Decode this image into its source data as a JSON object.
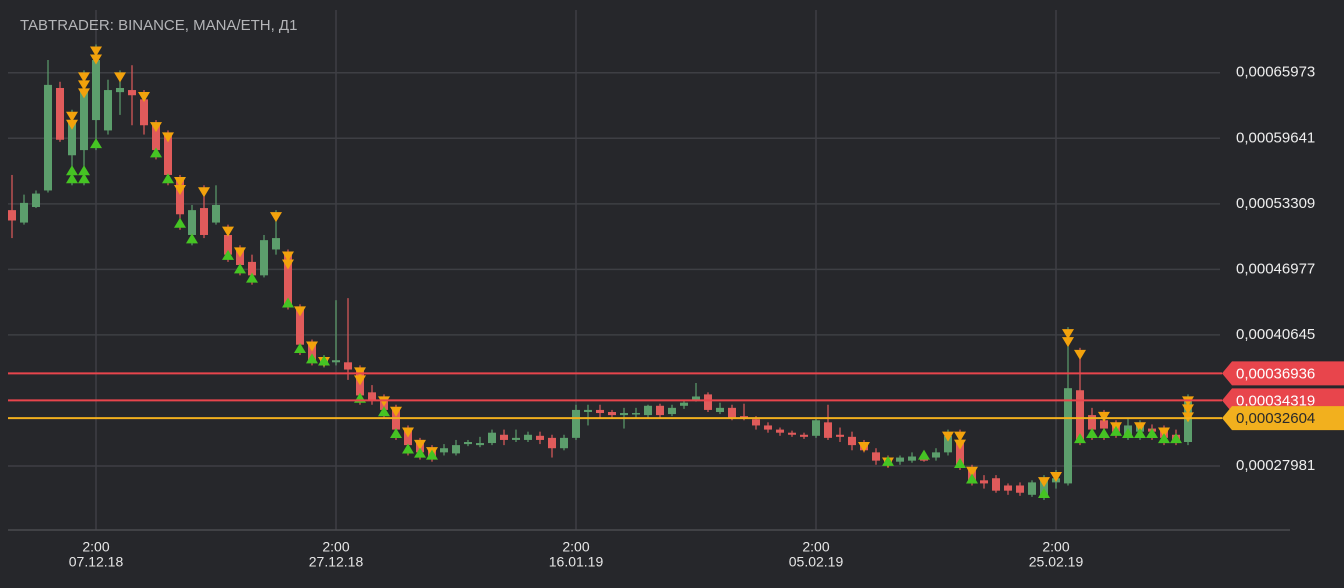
{
  "chart_data": {
    "type": "candlestick",
    "title": "TABTRADER: BINANCE, MANA/ETH, Д1",
    "x": [
      "30.11.18",
      "01.12.18",
      "02.12.18",
      "03.12.18",
      "04.12.18",
      "05.12.18",
      "06.12.18",
      "07.12.18",
      "08.12.18",
      "09.12.18",
      "10.12.18",
      "11.12.18",
      "12.12.18",
      "13.12.18",
      "14.12.18",
      "15.12.18",
      "16.12.18",
      "17.12.18",
      "18.12.18",
      "19.12.18",
      "20.12.18",
      "21.12.18",
      "22.12.18",
      "23.12.18",
      "24.12.18",
      "25.12.18",
      "26.12.18",
      "27.12.18",
      "28.12.18",
      "29.12.18",
      "30.12.18",
      "31.12.18",
      "01.01.19",
      "02.01.19",
      "03.01.19",
      "04.01.19",
      "05.01.19",
      "06.01.19",
      "07.01.19",
      "08.01.19",
      "09.01.19",
      "10.01.19",
      "11.01.19",
      "12.01.19",
      "13.01.19",
      "14.01.19",
      "15.01.19",
      "16.01.19",
      "17.01.19",
      "18.01.19",
      "19.01.19",
      "20.01.19",
      "21.01.19",
      "22.01.19",
      "23.01.19",
      "24.01.19",
      "25.01.19",
      "26.01.19",
      "27.01.19",
      "28.01.19",
      "29.01.19",
      "30.01.19",
      "31.01.19",
      "01.02.19",
      "02.02.19",
      "03.02.19",
      "04.02.19",
      "05.02.19",
      "06.02.19",
      "07.02.19",
      "08.02.19",
      "09.02.19",
      "10.02.19",
      "11.02.19",
      "12.02.19",
      "13.02.19",
      "14.02.19",
      "15.02.19",
      "16.02.19",
      "17.02.19",
      "18.02.19",
      "19.02.19",
      "20.02.19",
      "21.02.19",
      "22.02.19",
      "23.02.19",
      "24.02.19",
      "25.02.19",
      "26.02.19",
      "27.02.19",
      "28.02.19",
      "01.03.19",
      "02.03.19",
      "03.03.19",
      "04.03.19",
      "05.03.19",
      "06.03.19",
      "07.03.19",
      "08.03.19"
    ],
    "open": [
      0.000527,
      0.000515,
      0.00053,
      0.000546,
      0.000645,
      0.00058,
      0.000585,
      0.000614,
      0.000604,
      0.000641,
      0.000643,
      0.000634,
      0.000609,
      0.0006,
      0.000556,
      0.000503,
      0.000529,
      0.000515,
      0.000503,
      0.000489,
      0.000477,
      0.000464,
      0.000489,
      0.000487,
      0.000431,
      0.000397,
      0.00038,
      0.00038,
      0.00038,
      0.000373,
      0.000351,
      0.000344,
      0.000334,
      0.000315,
      0.000305,
      0.000295,
      0.000293,
      0.000292,
      0.000301,
      0.0003,
      0.000302,
      0.00031,
      0.000305,
      0.000305,
      0.000309,
      0.000307,
      0.000297,
      0.000307,
      0.000332,
      0.000334,
      0.000332,
      0.000329,
      0.00033,
      0.000329,
      0.000338,
      0.00033,
      0.000338,
      0.000344,
      0.000349,
      0.000332,
      0.000336,
      0.000328,
      0.000325,
      0.000319,
      0.000315,
      0.000312,
      0.00031,
      0.000309,
      0.000322,
      0.00031,
      0.000308,
      0.0003,
      0.000293,
      0.000285,
      0.000284,
      0.000285,
      0.000288,
      0.000288,
      0.000293,
      0.000305,
      0.000276,
      0.000266,
      0.000268,
      0.000261,
      0.000261,
      0.000252,
      0.000251,
      0.000264,
      0.000263,
      0.000353,
      0.000329,
      0.000324,
      0.000319,
      0.00031,
      0.000313,
      0.000316,
      0.000315,
      0.00031,
      0.000303
    ],
    "high": [
      0.000561,
      0.000542,
      0.000546,
      0.000672,
      0.000651,
      0.000624,
      0.000662,
      0.000687,
      0.000653,
      0.000662,
      0.000667,
      0.000643,
      0.000614,
      0.000604,
      0.000561,
      0.000532,
      0.000551,
      0.000551,
      0.000513,
      0.000493,
      0.000484,
      0.000503,
      0.000527,
      0.000489,
      0.000436,
      0.000402,
      0.000387,
      0.00044,
      0.000442,
      0.000377,
      0.000358,
      0.000349,
      0.000339,
      0.000319,
      0.000307,
      0.0003,
      0.000301,
      0.000305,
      0.000305,
      0.000308,
      0.000315,
      0.000315,
      0.000315,
      0.000313,
      0.000313,
      0.00031,
      0.00031,
      0.000339,
      0.000339,
      0.000339,
      0.000334,
      0.000336,
      0.000336,
      0.000339,
      0.00034,
      0.000339,
      0.000344,
      0.00036,
      0.000351,
      0.000341,
      0.000339,
      0.00034,
      0.000328,
      0.000322,
      0.000317,
      0.000314,
      0.000312,
      0.000326,
      0.000339,
      0.000317,
      0.000313,
      0.000305,
      0.000297,
      0.00029,
      0.00029,
      0.000293,
      0.000293,
      0.000297,
      0.000315,
      0.000315,
      0.000281,
      0.000271,
      0.000271,
      0.000263,
      0.000264,
      0.000266,
      0.000271,
      0.000276,
      0.000414,
      0.000394,
      0.000336,
      0.000334,
      0.000324,
      0.000326,
      0.000324,
      0.00032,
      0.000319,
      0.000315,
      0.000349
    ],
    "low": [
      0.0005,
      0.000513,
      0.000529,
      0.000544,
      0.000593,
      0.000551,
      0.000551,
      0.000585,
      0.0006,
      0.000619,
      0.000609,
      0.0006,
      0.000576,
      0.000551,
      0.000508,
      0.000493,
      0.0005,
      0.000513,
      0.000477,
      0.000464,
      0.000455,
      0.000462,
      0.000484,
      0.000431,
      0.000387,
      0.000377,
      0.000375,
      0.000377,
      0.000363,
      0.000339,
      0.000339,
      0.000326,
      0.000305,
      0.00029,
      0.000286,
      0.000284,
      0.00029,
      0.00029,
      0.000299,
      0.000298,
      0.0003,
      0.0003,
      0.000303,
      0.000303,
      0.000301,
      0.000288,
      0.000295,
      0.000305,
      0.000319,
      0.000326,
      0.000326,
      0.000316,
      0.000326,
      0.000326,
      0.000326,
      0.000328,
      0.000335,
      0.000342,
      0.000332,
      0.00033,
      0.000324,
      0.000324,
      0.000315,
      0.000312,
      0.000309,
      0.000308,
      0.000306,
      0.000307,
      0.000305,
      0.000303,
      0.000295,
      0.000293,
      0.000281,
      0.000278,
      0.000281,
      0.000283,
      0.000284,
      0.000285,
      0.00029,
      0.000276,
      0.000261,
      0.000258,
      0.000254,
      0.000252,
      0.000251,
      0.00025,
      0.000247,
      0.000258,
      0.000261,
      0.0003,
      0.000305,
      0.000305,
      0.000307,
      0.000305,
      0.000305,
      0.000305,
      0.0003,
      0.0003,
      0.0003
    ],
    "close": [
      0.000517,
      0.000534,
      0.000543,
      0.000648,
      0.000595,
      0.000614,
      0.000643,
      0.000672,
      0.000643,
      0.000645,
      0.000638,
      0.000609,
      0.000585,
      0.000561,
      0.000523,
      0.000527,
      0.000503,
      0.000532,
      0.000484,
      0.000474,
      0.000464,
      0.000498,
      0.0005,
      0.000436,
      0.000397,
      0.000382,
      0.000384,
      0.000382,
      0.000373,
      0.000348,
      0.000344,
      0.000334,
      0.000315,
      0.0003,
      0.000293,
      0.000288,
      0.000297,
      0.0003,
      0.000303,
      0.000302,
      0.000312,
      0.000305,
      0.000307,
      0.00031,
      0.000305,
      0.000297,
      0.000307,
      0.000334,
      0.000334,
      0.000331,
      0.000329,
      0.000331,
      0.000331,
      0.000338,
      0.000329,
      0.000336,
      0.000341,
      0.000347,
      0.000334,
      0.000336,
      0.000326,
      0.000326,
      0.000319,
      0.000315,
      0.000312,
      0.00031,
      0.000308,
      0.000324,
      0.000307,
      0.000308,
      0.0003,
      0.000295,
      0.000285,
      0.000284,
      0.000288,
      0.000289,
      0.000285,
      0.000293,
      0.000309,
      0.000281,
      0.000266,
      0.000263,
      0.000256,
      0.000256,
      0.000254,
      0.000264,
      0.000266,
      0.000268,
      0.000355,
      0.000305,
      0.000315,
      0.000316,
      0.000313,
      0.000319,
      0.000319,
      0.000313,
      0.000307,
      0.000305,
      0.000346
    ],
    "up_color": "#5c9e6c",
    "down_color": "#e05b5b",
    "sell_signals": [
      "05.12.18",
      "05.12.18",
      "06.12.18",
      "06.12.18",
      "06.12.18",
      "07.12.18",
      "07.12.18",
      "09.12.18",
      "11.12.18",
      "12.12.18",
      "13.12.18",
      "14.12.18",
      "14.12.18",
      "16.12.18",
      "18.12.18",
      "19.12.18",
      "22.12.18",
      "23.12.18",
      "23.12.18",
      "24.12.18",
      "25.12.18",
      "26.12.18",
      "29.12.18",
      "29.12.18",
      "31.12.18",
      "01.01.19",
      "02.01.19",
      "03.01.19",
      "04.01.19",
      "09.02.19",
      "11.02.19",
      "16.02.19",
      "17.02.19",
      "17.02.19",
      "18.02.19",
      "24.02.19",
      "25.02.19",
      "26.02.19",
      "26.02.19",
      "27.02.19",
      "01.03.19",
      "02.03.19",
      "04.03.19",
      "06.03.19",
      "08.03.19",
      "08.03.19",
      "08.03.19"
    ],
    "buy_signals": [
      "05.12.18",
      "05.12.18",
      "06.12.18",
      "06.12.18",
      "07.12.18",
      "12.12.18",
      "13.12.18",
      "14.12.18",
      "15.12.18",
      "18.12.18",
      "19.12.18",
      "20.12.18",
      "23.12.18",
      "24.12.18",
      "25.12.18",
      "26.12.18",
      "29.12.18",
      "31.12.18",
      "01.01.19",
      "02.01.19",
      "03.01.19",
      "04.01.19",
      "11.02.19",
      "14.02.19",
      "17.02.19",
      "18.02.19",
      "24.02.19",
      "27.02.19",
      "28.02.19",
      "01.03.19",
      "02.03.19",
      "03.03.19",
      "04.03.19",
      "05.03.19",
      "06.03.19",
      "07.03.19"
    ],
    "sell_color": "#f2a20c",
    "buy_color": "#45c423",
    "ylim": [
      0.000218,
      0.00073
    ],
    "yticks": [
      {
        "value": 0.00065973,
        "label": "0,00065973"
      },
      {
        "value": 0.00059641,
        "label": "0,00059641"
      },
      {
        "value": 0.00053309,
        "label": "0,00053309"
      },
      {
        "value": 0.00046977,
        "label": "0,00046977"
      },
      {
        "value": 0.00040645,
        "label": "0,00040645"
      },
      {
        "value": 0.00027981,
        "label": "0,00027981"
      }
    ],
    "xticks": [
      "07.12.18",
      "27.12.18",
      "16.01.19",
      "05.02.19",
      "25.02.19"
    ],
    "xtick_time": "2:00",
    "levels": [
      {
        "value": 0.00036936,
        "label": "0,00036936",
        "color": "#e8454c"
      },
      {
        "value": 0.00034319,
        "label": "0,00034319",
        "color": "#e8454c"
      },
      {
        "value": 0.00032604,
        "label": "0,00032604",
        "color": "#f2b01e"
      }
    ],
    "grid": true
  }
}
